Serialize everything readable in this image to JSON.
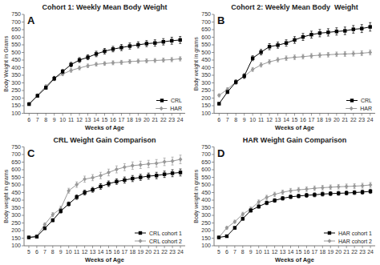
{
  "chart_data": [
    {
      "type": "line",
      "title": "Cohort 1: Weekly Mean Body Weight",
      "x_label": "Weeks of Age",
      "y_label": "Body Weight in Grams",
      "annotations": [
        "A"
      ],
      "x": [
        6,
        7,
        8,
        9,
        10,
        11,
        12,
        13,
        14,
        15,
        16,
        17,
        18,
        19,
        20,
        21,
        22,
        23,
        24
      ],
      "series": [
        {
          "name": "CRL",
          "color": "#000000",
          "marker": "square",
          "line_style": "solid",
          "values": [
            160,
            215,
            268,
            328,
            375,
            420,
            450,
            468,
            490,
            508,
            522,
            532,
            542,
            550,
            558,
            562,
            570,
            577,
            582
          ],
          "errors": [
            6,
            8,
            10,
            13,
            13,
            15,
            16,
            16,
            18,
            18,
            18,
            20,
            20,
            20,
            20,
            21,
            21,
            23,
            23
          ]
        },
        {
          "name": "HAR",
          "color": "#999999",
          "marker": "diamond",
          "line_style": "solid",
          "values": [
            163,
            218,
            278,
            332,
            358,
            382,
            398,
            412,
            422,
            427,
            432,
            435,
            440,
            443,
            445,
            447,
            450,
            453,
            458
          ],
          "errors": [
            6,
            8,
            10,
            11,
            11,
            12,
            12,
            12,
            12,
            12,
            13,
            13,
            13,
            13,
            13,
            13,
            13,
            14,
            14
          ]
        }
      ],
      "xlim": [
        5.4,
        24.6
      ],
      "xticks": [
        6,
        7,
        8,
        9,
        10,
        11,
        12,
        13,
        14,
        15,
        16,
        17,
        18,
        19,
        20,
        21,
        22,
        23,
        24
      ],
      "ylim": [
        100,
        750
      ],
      "yticks": [
        100,
        150,
        200,
        250,
        300,
        350,
        400,
        450,
        500,
        550,
        600,
        650,
        700,
        750
      ],
      "grid": false,
      "legend": "lower right"
    },
    {
      "type": "line",
      "title": "Cohort 2: Weekly Mean Body  Weight",
      "x_label": "Weeks of Age",
      "y_label": "Body weight in grams",
      "annotations": [
        "B"
      ],
      "x": [
        6,
        7,
        8,
        9,
        10,
        11,
        12,
        13,
        14,
        15,
        16,
        17,
        18,
        19,
        20,
        21,
        22,
        23,
        24
      ],
      "series": [
        {
          "name": "CRL",
          "color": "#000000",
          "marker": "square",
          "line_style": "solid",
          "values": [
            163,
            240,
            305,
            345,
            462,
            502,
            538,
            548,
            562,
            582,
            602,
            617,
            627,
            632,
            638,
            642,
            652,
            657,
            668
          ],
          "errors": [
            7,
            10,
            13,
            15,
            16,
            18,
            20,
            20,
            21,
            22,
            23,
            23,
            24,
            24,
            24,
            25,
            25,
            26,
            28
          ]
        },
        {
          "name": "HAR",
          "color": "#999999",
          "marker": "diamond",
          "line_style": "solid",
          "values": [
            218,
            258,
            308,
            342,
            388,
            418,
            438,
            452,
            462,
            468,
            472,
            478,
            482,
            485,
            488,
            490,
            492,
            495,
            500
          ],
          "errors": [
            9,
            10,
            12,
            13,
            13,
            14,
            14,
            14,
            15,
            15,
            15,
            15,
            15,
            15,
            15,
            16,
            16,
            16,
            16
          ]
        }
      ],
      "xlim": [
        5.4,
        24.6
      ],
      "xticks": [
        6,
        7,
        8,
        9,
        10,
        11,
        12,
        13,
        14,
        15,
        16,
        17,
        18,
        19,
        20,
        21,
        22,
        23,
        24
      ],
      "ylim": [
        100,
        750
      ],
      "yticks": [
        100,
        150,
        200,
        250,
        300,
        350,
        400,
        450,
        500,
        550,
        600,
        650,
        700,
        750
      ],
      "grid": false,
      "legend": "lower right"
    },
    {
      "type": "line",
      "title": "CRL Weight Gain Comparison",
      "x_label": "Weeks of Age",
      "y_label": "Body weight in grams",
      "annotations": [
        "C"
      ],
      "x": [
        5,
        6,
        7,
        8,
        9,
        10,
        11,
        12,
        13,
        14,
        15,
        16,
        17,
        18,
        19,
        20,
        21,
        22,
        23,
        24
      ],
      "series": [
        {
          "name": "CRL cohort 1",
          "color": "#000000",
          "marker": "square",
          "line_style": "solid",
          "values": [
            155,
            160,
            215,
            268,
            328,
            375,
            420,
            450,
            468,
            490,
            508,
            522,
            532,
            542,
            550,
            558,
            562,
            570,
            577,
            582
          ],
          "errors": [
            5,
            6,
            8,
            10,
            13,
            13,
            15,
            16,
            16,
            18,
            18,
            18,
            20,
            20,
            20,
            20,
            21,
            21,
            23,
            23
          ]
        },
        {
          "name": "CRL cohort 2",
          "color": "#999999",
          "marker": "diamond",
          "line_style": "solid",
          "values": [
            155,
            163,
            240,
            305,
            345,
            462,
            502,
            538,
            548,
            562,
            582,
            602,
            617,
            627,
            632,
            638,
            642,
            652,
            657,
            668
          ],
          "errors": [
            5,
            7,
            10,
            13,
            15,
            16,
            18,
            20,
            20,
            21,
            22,
            23,
            23,
            24,
            24,
            24,
            25,
            25,
            26,
            28
          ]
        }
      ],
      "xlim": [
        4.4,
        24.6
      ],
      "xticks": [
        5,
        6,
        7,
        8,
        9,
        10,
        11,
        12,
        13,
        14,
        15,
        16,
        17,
        18,
        19,
        20,
        21,
        22,
        23,
        24
      ],
      "ylim": [
        100,
        750
      ],
      "yticks": [
        100,
        150,
        200,
        250,
        300,
        350,
        400,
        450,
        500,
        550,
        600,
        650,
        700,
        750
      ],
      "grid": false,
      "legend": "lower right"
    },
    {
      "type": "line",
      "title": "HAR Weight Gain Comparison",
      "x_label": "Weeks of Age",
      "y_label": "Body weight in grams",
      "annotations": [
        "D"
      ],
      "x": [
        5,
        6,
        7,
        8,
        9,
        10,
        11,
        12,
        13,
        14,
        15,
        16,
        17,
        18,
        19,
        20,
        21,
        22,
        23,
        24
      ],
      "series": [
        {
          "name": "HAR cohort 1",
          "color": "#000000",
          "marker": "square",
          "line_style": "solid",
          "values": [
            155,
            163,
            218,
            278,
            332,
            358,
            382,
            398,
            412,
            422,
            427,
            432,
            435,
            440,
            443,
            445,
            447,
            450,
            453,
            458
          ],
          "errors": [
            5,
            6,
            8,
            10,
            11,
            11,
            12,
            12,
            12,
            12,
            12,
            13,
            13,
            13,
            13,
            13,
            13,
            13,
            14,
            14
          ]
        },
        {
          "name": "HAR cohort 2",
          "color": "#999999",
          "marker": "diamond",
          "line_style": "solid",
          "values": [
            155,
            218,
            258,
            308,
            342,
            388,
            418,
            438,
            452,
            462,
            468,
            472,
            478,
            482,
            485,
            488,
            490,
            492,
            495,
            500
          ],
          "errors": [
            5,
            9,
            10,
            12,
            13,
            13,
            14,
            14,
            14,
            15,
            15,
            15,
            15,
            15,
            15,
            15,
            16,
            16,
            16,
            16
          ]
        }
      ],
      "xlim": [
        4.4,
        24.6
      ],
      "xticks": [
        5,
        6,
        7,
        8,
        9,
        10,
        11,
        12,
        13,
        14,
        15,
        16,
        17,
        18,
        19,
        20,
        21,
        22,
        23,
        24
      ],
      "ylim": [
        100,
        750
      ],
      "yticks": [
        100,
        150,
        200,
        250,
        300,
        350,
        400,
        450,
        500,
        550,
        600,
        650,
        700,
        750
      ],
      "grid": false,
      "legend": "lower right"
    }
  ]
}
